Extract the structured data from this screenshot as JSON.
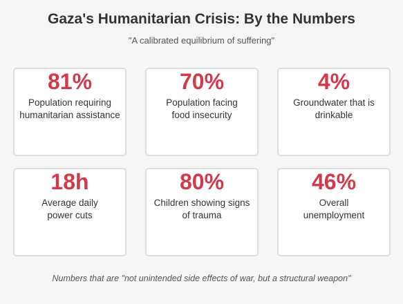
{
  "header": {
    "title": "Gaza's Humanitarian Crisis: By the Numbers",
    "subtitle": "\"A calibrated equilibrium of suffering\""
  },
  "colors": {
    "accent": "#d03a4b",
    "background": "#f5f5f5",
    "card_border": "#dddddd",
    "text": "#333333"
  },
  "stats": [
    {
      "value": "81%",
      "label": "Population requiring humanitarian assistance"
    },
    {
      "value": "70%",
      "label": "Population facing food insecurity"
    },
    {
      "value": "4%",
      "label": "Groundwater that is drinkable"
    },
    {
      "value": "18h",
      "label": "Average daily power cuts"
    },
    {
      "value": "80%",
      "label": "Children showing signs of trauma"
    },
    {
      "value": "46%",
      "label": "Overall unemployment"
    }
  ],
  "footer": {
    "note": "Numbers that are \"not unintended side effects of war, but a structural weapon\""
  }
}
